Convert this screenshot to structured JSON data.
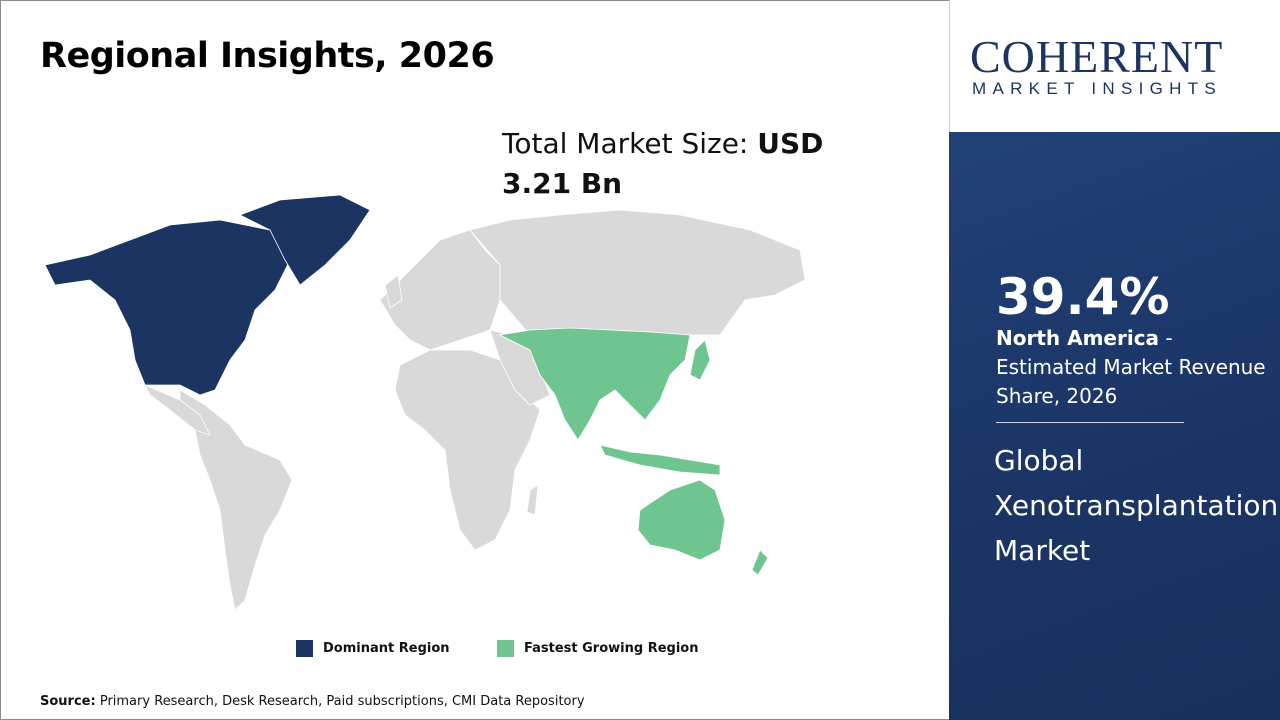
{
  "header": {
    "title": "Regional Insights, 2026"
  },
  "total_market": {
    "label": "Total Market Size:",
    "value": "USD 3.21 Bn"
  },
  "legend": [
    {
      "label": "Dominant Region",
      "color": "#1b3461"
    },
    {
      "label": "Fastest Growing Region",
      "color": "#6fc58f"
    }
  ],
  "map": {
    "dominant_region": "North America",
    "fastest_growing_region": "Asia Pacific",
    "other_color": "#d9d9d9"
  },
  "source": {
    "label": "Source:",
    "text": "Primary Research, Desk Research, Paid subscriptions, CMI Data Repository"
  },
  "logo": {
    "main": "COHERENT",
    "sub": "MARKET INSIGHTS"
  },
  "sidebar": {
    "share": "39.4%",
    "region": "North America",
    "description": " - Estimated Market Revenue Share, 2026",
    "market_name": "Global Xenotransplantation Market"
  }
}
